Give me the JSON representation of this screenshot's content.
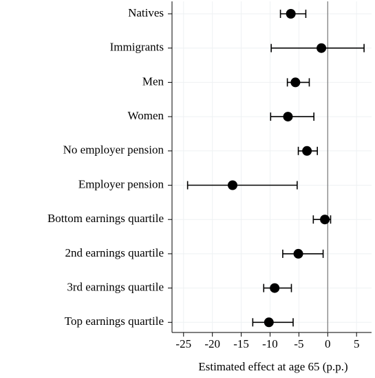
{
  "chart_data": {
    "type": "coefplot",
    "xlabel": "Estimated effect at age 65 (p.p.)",
    "categories": [
      "Natives",
      "Immigrants",
      "Men",
      "Women",
      "No employer pension",
      "Employer pension",
      "Bottom earnings quartile",
      "2nd earnings quartile",
      "3rd earnings quartile",
      "Top earnings quartile"
    ],
    "values": [
      -6.4,
      -1.1,
      -5.6,
      -6.9,
      -3.6,
      -16.5,
      -0.5,
      -5.1,
      -9.2,
      -10.2
    ],
    "lower": [
      -8.2,
      -9.8,
      -7.0,
      -9.9,
      -5.1,
      -24.3,
      -2.5,
      -7.8,
      -11.1,
      -13.0
    ],
    "upper": [
      -3.8,
      6.3,
      -3.2,
      -2.4,
      -1.8,
      -5.3,
      0.5,
      -0.8,
      -6.3,
      -6.0
    ],
    "color": "#000000",
    "xlim": [
      -27,
      7.6
    ],
    "xticks": [
      -25,
      -20,
      -15,
      -10,
      -5,
      0,
      5
    ],
    "reference_line": 0,
    "grid": true
  }
}
